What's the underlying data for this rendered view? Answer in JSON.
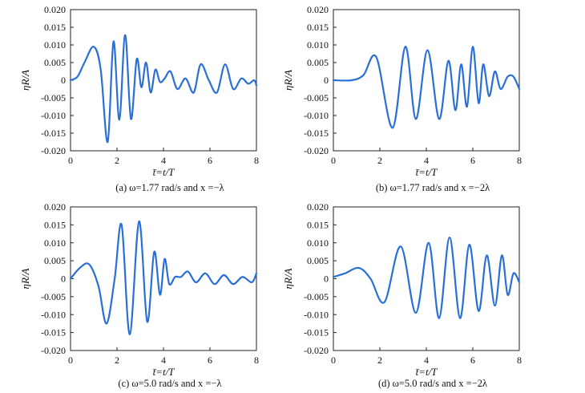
{
  "chart_data": [
    {
      "type": "line",
      "caption": "(a) ω=1.77 rad/s and x =−λ",
      "xlabel": "t̄=t/T",
      "ylabel": "ηR/A",
      "xlim": [
        0,
        8
      ],
      "ylim": [
        -0.02,
        0.02
      ],
      "xticks": [
        "0",
        "2",
        "4",
        "6",
        "8"
      ],
      "yticks": [
        "0.020",
        "0.015",
        "0.010",
        "0.005",
        "0",
        "-0.005",
        "-0.010",
        "-0.015",
        "-0.020"
      ],
      "grid": false,
      "color": "#2a6fd6",
      "series": [
        {
          "x": [
            0,
            0.3,
            0.6,
            1.0,
            1.3,
            1.6,
            1.85,
            2.1,
            2.35,
            2.6,
            2.85,
            3.05,
            3.25,
            3.45,
            3.65,
            3.85,
            4.05,
            4.3,
            4.6,
            4.95,
            5.3,
            5.6,
            5.95,
            6.3,
            6.65,
            7.0,
            7.35,
            7.65,
            7.9,
            8.0
          ],
          "y": [
            0,
            0.001,
            0.005,
            0.0095,
            0.003,
            -0.0175,
            0.011,
            -0.0112,
            0.0128,
            -0.011,
            0.006,
            -0.002,
            0.005,
            -0.0035,
            0.003,
            -0.0005,
            0.0005,
            0.0025,
            -0.0025,
            0.0005,
            -0.0035,
            0.0045,
            0.0,
            -0.0035,
            0.0045,
            -0.0025,
            0.0005,
            -0.001,
            0.0,
            -0.0015
          ]
        }
      ]
    },
    {
      "type": "line",
      "caption": "(b) ω=1.77 rad/s and x =−2λ",
      "xlabel": "t̄=t/T",
      "ylabel": "ηR/A",
      "xlim": [
        0,
        8
      ],
      "ylim": [
        -0.02,
        0.02
      ],
      "xticks": [
        "0",
        "2",
        "4",
        "6",
        "8"
      ],
      "yticks": [
        "0.020",
        "0.015",
        "0.010",
        "0.005",
        "0",
        "-0.005",
        "-0.010",
        "-0.015",
        "-0.020"
      ],
      "grid": false,
      "color": "#2a6fd6",
      "series": [
        {
          "x": [
            0,
            0.8,
            1.3,
            1.85,
            2.55,
            3.1,
            3.55,
            4.05,
            4.55,
            4.95,
            5.25,
            5.5,
            5.75,
            6.0,
            6.25,
            6.45,
            6.7,
            6.95,
            7.2,
            7.5,
            7.75,
            8.0
          ],
          "y": [
            0,
            0,
            0.0015,
            0.0065,
            -0.0135,
            0.0095,
            -0.011,
            0.0085,
            -0.011,
            0.0055,
            -0.0085,
            0.0045,
            -0.0075,
            0.0095,
            -0.0065,
            0.0045,
            -0.0045,
            0.0025,
            -0.0025,
            0.001,
            0.001,
            -0.0025
          ]
        }
      ]
    },
    {
      "type": "line",
      "caption": "(c) ω=5.0 rad/s and x =−λ",
      "xlabel": "t̄=t/T",
      "ylabel": "ηR/A",
      "xlim": [
        0,
        8
      ],
      "ylim": [
        -0.02,
        0.02
      ],
      "xticks": [
        "0",
        "2",
        "4",
        "6",
        "8"
      ],
      "yticks": [
        "0.020",
        "0.015",
        "0.010",
        "0.005",
        "0",
        "-0.005",
        "-0.010",
        "-0.015",
        "-0.020"
      ],
      "grid": false,
      "color": "#2a6fd6",
      "series": [
        {
          "x": [
            0,
            0.4,
            0.8,
            1.2,
            1.55,
            1.9,
            2.2,
            2.55,
            2.95,
            3.3,
            3.6,
            3.85,
            4.05,
            4.25,
            4.5,
            4.75,
            5.05,
            5.4,
            5.8,
            6.2,
            6.6,
            7.0,
            7.4,
            7.8,
            8.0
          ],
          "y": [
            0,
            0.003,
            0.004,
            -0.002,
            -0.0125,
            0.0,
            0.015,
            -0.0155,
            0.016,
            -0.012,
            0.0075,
            -0.0045,
            0.0055,
            -0.0015,
            0.0005,
            0.0005,
            0.002,
            -0.001,
            0.0015,
            -0.0015,
            0.001,
            -0.0015,
            0.0005,
            -0.001,
            0.0015
          ]
        }
      ]
    },
    {
      "type": "line",
      "caption": "(d) ω=5.0 rad/s and x =−2λ",
      "xlabel": "t̄=t/T",
      "ylabel": "ηR/A",
      "xlim": [
        0,
        8
      ],
      "ylim": [
        -0.02,
        0.02
      ],
      "xticks": [
        "0",
        "2",
        "4",
        "6",
        "8"
      ],
      "yticks": [
        "0.020",
        "0.015",
        "0.010",
        "0.005",
        "0",
        "-0.005",
        "-0.010",
        "-0.015",
        "-0.020"
      ],
      "grid": false,
      "color": "#2a6fd6",
      "series": [
        {
          "x": [
            0,
            0.5,
            1.1,
            1.6,
            2.2,
            2.9,
            3.55,
            4.1,
            4.55,
            5.0,
            5.45,
            5.85,
            6.25,
            6.6,
            6.95,
            7.25,
            7.5,
            7.75,
            8.0
          ],
          "y": [
            0.0005,
            0.0015,
            0.003,
            0.0,
            -0.0065,
            0.009,
            -0.0095,
            0.01,
            -0.011,
            0.0115,
            -0.011,
            0.0095,
            -0.009,
            0.0065,
            -0.0075,
            0.0065,
            -0.0045,
            0.0015,
            -0.001
          ]
        }
      ]
    }
  ]
}
